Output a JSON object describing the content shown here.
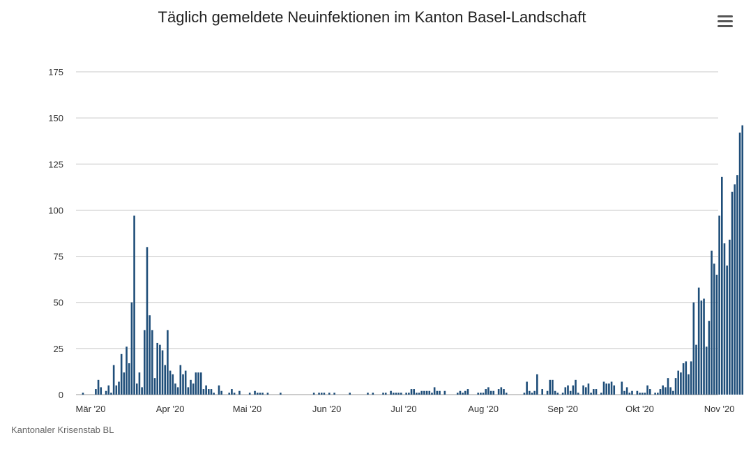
{
  "chart_title": "Täglich gemeldete Neuinfektionen im Kanton Basel-Landschaft",
  "credit": "Kantonaler Krisenstab BL",
  "menu_icon": "hamburger-menu-icon",
  "colors": {
    "bar": "#1f4e79",
    "grid": "#c8c8c8",
    "axis": "#333333"
  },
  "chart_data": {
    "type": "bar",
    "title": "Täglich gemeldete Neuinfektionen im Kanton Basel-Landschaft",
    "xlabel": "",
    "ylabel": "",
    "ylim": [
      0,
      175
    ],
    "yticks": [
      0,
      25,
      50,
      75,
      100,
      125,
      150,
      175
    ],
    "xticks": [
      "Mär '20",
      "Apr '20",
      "Mai '20",
      "Jun '20",
      "Jul '20",
      "Aug '20",
      "Sep '20",
      "Okt '20",
      "Nov '20"
    ],
    "start_date": "2020-02-26",
    "x_unit": "day",
    "grid": true,
    "legend": "none",
    "values": [
      0,
      1,
      0,
      0,
      0,
      0,
      3,
      8,
      4,
      0,
      2,
      5,
      1,
      16,
      5,
      7,
      22,
      12,
      26,
      17,
      50,
      97,
      6,
      12,
      4,
      35,
      80,
      43,
      35,
      9,
      28,
      27,
      24,
      16,
      35,
      13,
      11,
      6,
      4,
      16,
      11,
      13,
      4,
      8,
      6,
      12,
      12,
      12,
      3,
      5,
      3,
      3,
      1,
      0,
      5,
      2,
      0,
      0,
      1,
      3,
      1,
      0,
      2,
      0,
      0,
      0,
      1,
      0,
      2,
      1,
      1,
      1,
      0,
      1,
      0,
      0,
      0,
      0,
      1,
      0,
      0,
      0,
      0,
      0,
      0,
      0,
      0,
      0,
      0,
      0,
      0,
      1,
      0,
      1,
      1,
      1,
      0,
      1,
      0,
      1,
      0,
      0,
      0,
      0,
      0,
      1,
      0,
      0,
      0,
      0,
      0,
      0,
      1,
      0,
      1,
      0,
      0,
      0,
      1,
      1,
      0,
      2,
      1,
      1,
      1,
      1,
      0,
      1,
      1,
      3,
      3,
      1,
      1,
      2,
      2,
      2,
      2,
      1,
      4,
      2,
      2,
      0,
      2,
      0,
      0,
      0,
      0,
      1,
      2,
      1,
      2,
      3,
      0,
      0,
      0,
      1,
      1,
      1,
      3,
      4,
      2,
      2,
      0,
      3,
      4,
      3,
      1,
      0,
      0,
      0,
      0,
      0,
      0,
      1,
      7,
      2,
      1,
      2,
      11,
      0,
      3,
      0,
      2,
      8,
      8,
      2,
      1,
      0,
      1,
      4,
      5,
      2,
      5,
      8,
      1,
      0,
      5,
      4,
      6,
      1,
      3,
      3,
      0,
      1,
      7,
      6,
      6,
      7,
      5,
      0,
      0,
      7,
      2,
      4,
      1,
      2,
      0,
      2,
      1,
      1,
      1,
      5,
      3,
      0,
      1,
      1,
      3,
      5,
      4,
      9,
      4,
      2,
      9,
      13,
      12,
      17,
      18,
      11,
      18,
      50,
      27,
      58,
      51,
      52,
      26,
      40,
      78,
      71,
      65,
      97,
      118,
      82,
      70,
      84,
      110,
      114,
      119,
      142,
      146
    ]
  }
}
